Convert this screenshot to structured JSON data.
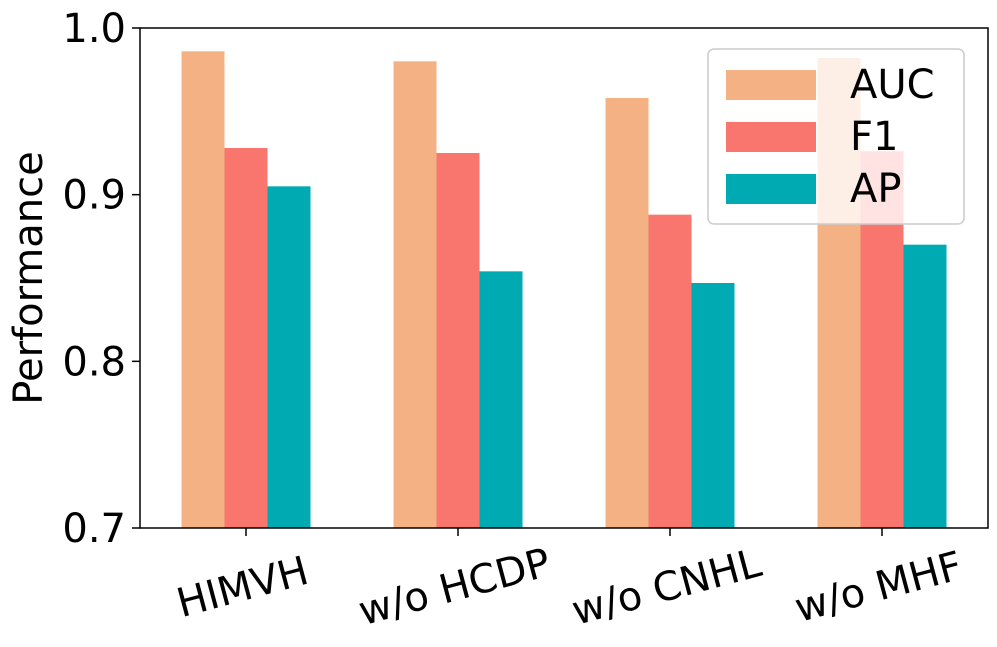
{
  "chart_data": {
    "type": "bar",
    "ylabel": "Performance",
    "xlabel": "",
    "title": "",
    "ylim": [
      0.7,
      1.0
    ],
    "yticks": [
      "0.7",
      "0.8",
      "0.9",
      "1.0"
    ],
    "categories": [
      "HIMVH",
      "w/o HCDP",
      "w/o CNHL",
      "w/o MHF"
    ],
    "series": [
      {
        "name": "AUC",
        "color": "#F4B183",
        "values": [
          0.986,
          0.98,
          0.958,
          0.982
        ]
      },
      {
        "name": "F1",
        "color": "#F8766D",
        "values": [
          0.928,
          0.925,
          0.888,
          0.926
        ]
      },
      {
        "name": "AP",
        "color": "#00AAB3",
        "values": [
          0.905,
          0.854,
          0.847,
          0.87
        ]
      }
    ],
    "legend_position": "top-right",
    "grid": false
  }
}
